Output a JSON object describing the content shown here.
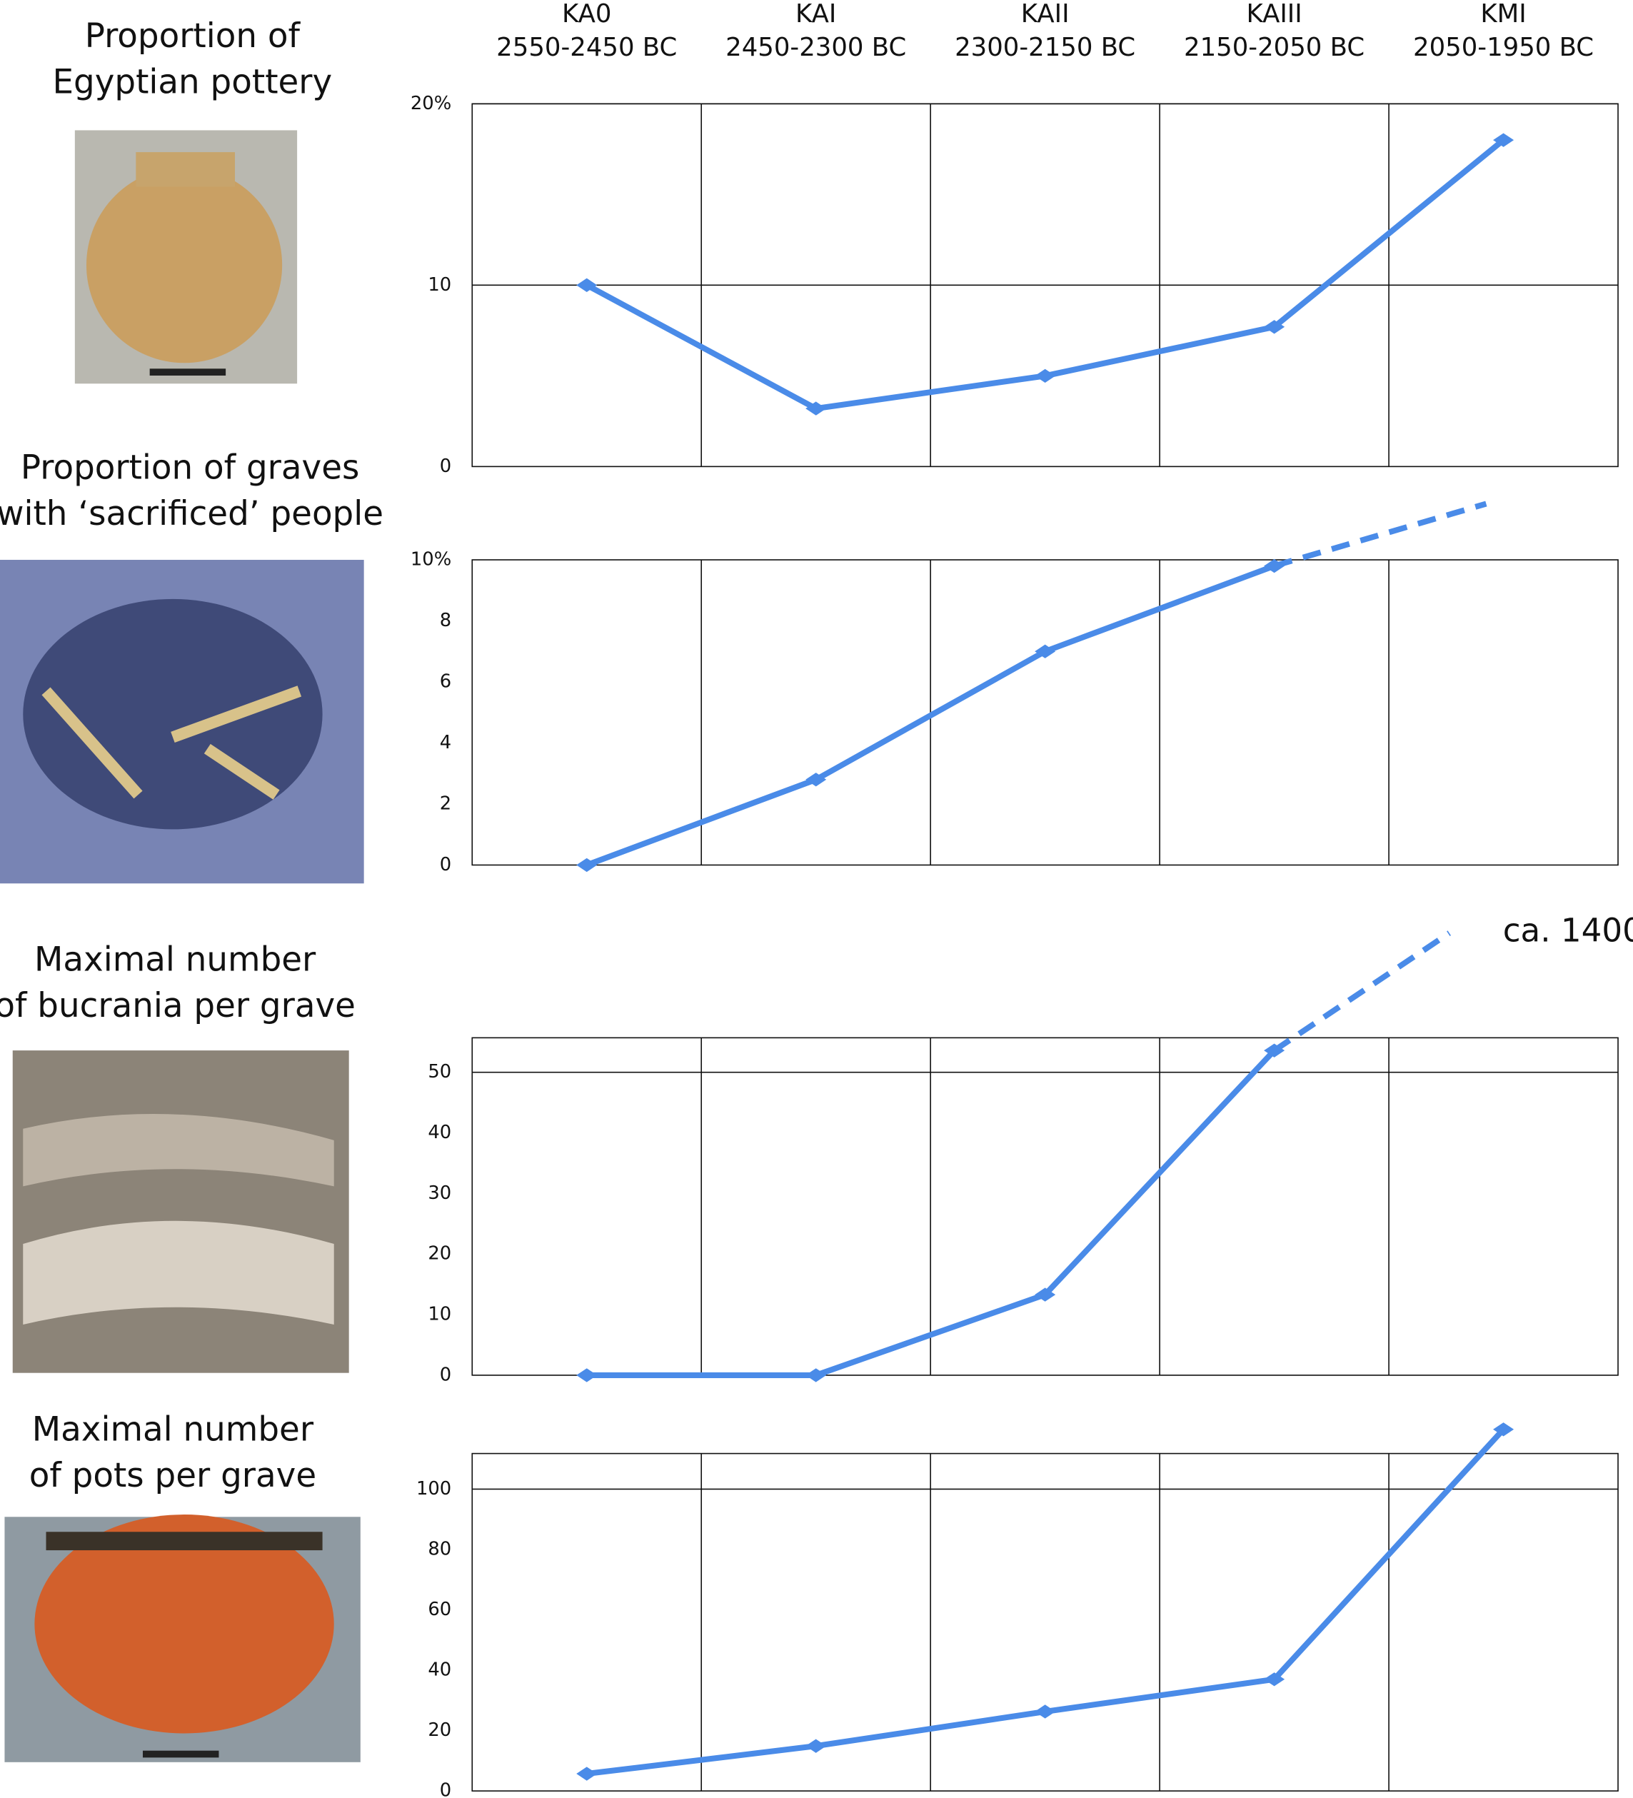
{
  "chart_data": [
    {
      "type": "line",
      "title": [
        "Proportion of",
        "Egyptian pottery"
      ],
      "categories": [
        "KA0",
        "KAI",
        "KAII",
        "KAIII",
        "KMI"
      ],
      "periods": [
        "2550-2450 BC",
        "2450-2300 BC",
        "2300-2150 BC",
        "2150-2050 BC",
        "2050-1950 BC"
      ],
      "values": [
        10,
        3.2,
        5,
        7.7,
        18
      ],
      "color": "#4a8be8",
      "ylim": [
        0,
        20
      ],
      "yticks": [
        0,
        10,
        {
          "value": 20,
          "label": "20%"
        }
      ],
      "hgrid": [
        10,
        20
      ]
    },
    {
      "type": "line",
      "title": [
        "Proportion of graves",
        "with ‘sacrificed’ people"
      ],
      "values": [
        0,
        2.8,
        7,
        9.8,
        null
      ],
      "color": "#4a8be8",
      "ylim": [
        0,
        10
      ],
      "yticks": [
        0,
        2,
        4,
        6,
        8,
        {
          "value": 10,
          "label": "10%"
        }
      ]
    },
    {
      "type": "line",
      "title": [
        "Maximal number",
        "of bucrania per grave"
      ],
      "values": [
        0,
        0,
        13.3,
        53.6,
        null
      ],
      "color": "#4a8be8",
      "annotation": "ca. 1400",
      "ylim": [
        0,
        55.7
      ],
      "yticks": [
        0,
        10,
        20,
        30,
        40,
        50
      ],
      "hgrid": [
        50
      ]
    },
    {
      "type": "line",
      "title": [
        "Maximal number",
        "of pots per grave"
      ],
      "values": [
        5.7,
        14.9,
        26.3,
        37,
        119.8
      ],
      "color": "#4a8be8",
      "ylim": [
        0,
        111.8
      ],
      "yticks": [
        0,
        20,
        40,
        60,
        80,
        100
      ],
      "hgrid": [
        100
      ]
    }
  ]
}
